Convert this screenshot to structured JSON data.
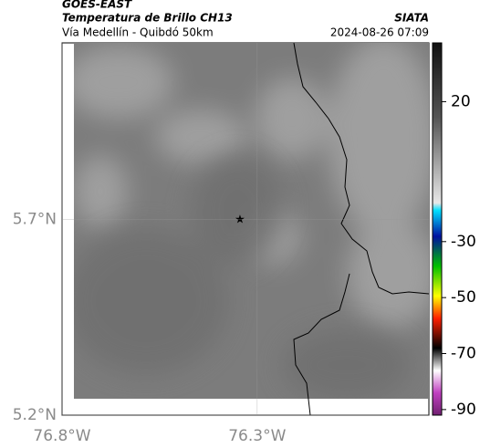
{
  "header": {
    "source": "GOES-EAST",
    "product": "Temperatura de Brillo CH13",
    "region": "Vía Medellín - Quibdó 50km",
    "org": "SIATA",
    "datetime": "2024-08-26 07:09"
  },
  "map": {
    "xlim": [
      -76.8,
      -75.86
    ],
    "ylim": [
      5.2,
      6.15
    ],
    "xticks": [
      {
        "value": -76.8,
        "label": "76.8°W"
      },
      {
        "value": -76.3,
        "label": "76.3°W"
      }
    ],
    "yticks": [
      {
        "value": 5.7,
        "label": "5.7°N"
      },
      {
        "value": 5.2,
        "label": "5.2°N"
      }
    ]
  },
  "colorbar": {
    "lim": [
      -92,
      41
    ],
    "ticks": [
      20,
      -30,
      -50,
      -70,
      -90
    ]
  }
}
